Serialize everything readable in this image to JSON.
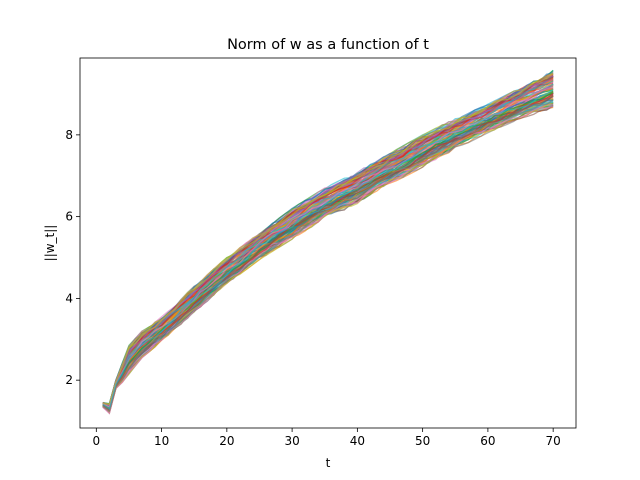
{
  "chart_data": {
    "type": "line",
    "title": "Norm of w as a function of t",
    "xlabel": "t",
    "ylabel": "||w_t||",
    "xlim": [
      -2.5,
      73.5
    ],
    "ylim": [
      0.83,
      9.88
    ],
    "xticks": [
      0,
      10,
      20,
      30,
      40,
      50,
      60,
      70
    ],
    "yticks": [
      2,
      4,
      6,
      8
    ],
    "grid": false,
    "legend": "none",
    "series_count_note": "many overlapping runs (approx. 100)",
    "x": [
      1,
      2,
      3,
      4,
      5,
      6,
      7,
      8,
      9,
      10,
      11,
      12,
      13,
      14,
      15,
      16,
      17,
      18,
      19,
      20,
      21,
      22,
      23,
      24,
      25,
      26,
      27,
      28,
      29,
      30,
      31,
      32,
      33,
      34,
      35,
      36,
      37,
      38,
      39,
      40,
      41,
      42,
      43,
      44,
      45,
      46,
      47,
      48,
      49,
      50,
      51,
      52,
      53,
      54,
      55,
      56,
      57,
      58,
      59,
      60,
      61,
      62,
      63,
      64,
      65,
      66,
      67,
      68,
      69,
      70
    ],
    "envelope": {
      "t_points": [
        1,
        2,
        3,
        5,
        7,
        10,
        15,
        20,
        25,
        30,
        35,
        40,
        45,
        50,
        55,
        60,
        65,
        70
      ],
      "upper": [
        1.45,
        1.42,
        2.0,
        2.8,
        3.15,
        3.5,
        4.25,
        4.95,
        5.55,
        6.15,
        6.65,
        7.05,
        7.5,
        7.95,
        8.35,
        8.7,
        9.1,
        9.55
      ],
      "lower": [
        1.35,
        1.2,
        1.8,
        2.2,
        2.6,
        3.0,
        3.7,
        4.4,
        5.0,
        5.5,
        6.0,
        6.35,
        6.85,
        7.25,
        7.7,
        8.1,
        8.45,
        8.7
      ]
    },
    "colors": [
      "#1f77b4",
      "#ff7f0e",
      "#2ca02c",
      "#d62728",
      "#9467bd",
      "#8c564b",
      "#e377c2",
      "#7f7f7f",
      "#bcbd22",
      "#17becf"
    ]
  }
}
